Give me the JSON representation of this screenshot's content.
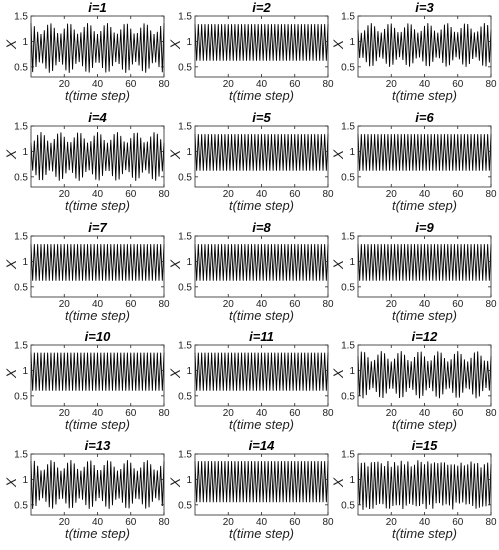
{
  "chart_data": [
    {
      "type": "line",
      "title": "i=1",
      "xlabel": "t(time step)",
      "ylabel": "X",
      "xlim": [
        0,
        80
      ],
      "ylim": [
        0.3,
        1.5
      ],
      "xticks": [
        20,
        40,
        60,
        80
      ],
      "yticks": [
        0.5,
        1,
        1.5
      ],
      "series": [
        {
          "range": [
            0.38,
            1.36
          ],
          "pattern": "period-2 alternation, amplitude modulated"
        }
      ]
    },
    {
      "type": "line",
      "title": "i=2",
      "xlabel": "t(time step)",
      "ylabel": "X",
      "xlim": [
        0,
        80
      ],
      "ylim": [
        0.3,
        1.5
      ],
      "xticks": [
        20,
        40,
        60,
        80
      ],
      "yticks": [
        0.5,
        1,
        1.5
      ],
      "series": [
        {
          "range": [
            0.62,
            1.34
          ],
          "pattern": "period-2 alternation"
        }
      ]
    },
    {
      "type": "line",
      "title": "i=3",
      "xlabel": "t(time step)",
      "ylabel": "X",
      "xlim": [
        0,
        80
      ],
      "ylim": [
        0.3,
        1.5
      ],
      "xticks": [
        20,
        40,
        60,
        80
      ],
      "yticks": [
        0.5,
        1,
        1.5
      ],
      "series": [
        {
          "range": [
            0.5,
            1.36
          ],
          "pattern": "period-2 alternation, amplitude modulated"
        }
      ]
    },
    {
      "type": "line",
      "title": "i=4",
      "xlabel": "t(time step)",
      "ylabel": "X",
      "xlim": [
        0,
        80
      ],
      "ylim": [
        0.3,
        1.5
      ],
      "xticks": [
        20,
        40,
        60,
        80
      ],
      "yticks": [
        0.5,
        1,
        1.5
      ],
      "series": [
        {
          "range": [
            0.42,
            1.38
          ],
          "pattern": "period-2 alternation, amplitude modulated"
        }
      ]
    },
    {
      "type": "line",
      "title": "i=5",
      "xlabel": "t(time step)",
      "ylabel": "X",
      "xlim": [
        0,
        80
      ],
      "ylim": [
        0.3,
        1.5
      ],
      "xticks": [
        20,
        40,
        60,
        80
      ],
      "yticks": [
        0.5,
        1,
        1.5
      ],
      "series": [
        {
          "range": [
            0.62,
            1.34
          ],
          "pattern": "period-2 alternation"
        }
      ]
    },
    {
      "type": "line",
      "title": "i=6",
      "xlabel": "t(time step)",
      "ylabel": "X",
      "xlim": [
        0,
        80
      ],
      "ylim": [
        0.3,
        1.5
      ],
      "xticks": [
        20,
        40,
        60,
        80
      ],
      "yticks": [
        0.5,
        1,
        1.5
      ],
      "series": [
        {
          "range": [
            0.62,
            1.34
          ],
          "pattern": "period-2 alternation"
        }
      ]
    },
    {
      "type": "line",
      "title": "i=7",
      "xlabel": "t(time step)",
      "ylabel": "X",
      "xlim": [
        0,
        80
      ],
      "ylim": [
        0.3,
        1.5
      ],
      "xticks": [
        20,
        40,
        60,
        80
      ],
      "yticks": [
        0.5,
        1,
        1.5
      ],
      "series": [
        {
          "range": [
            0.62,
            1.34
          ],
          "pattern": "period-2 alternation"
        }
      ]
    },
    {
      "type": "line",
      "title": "i=8",
      "xlabel": "t(time step)",
      "ylabel": "X",
      "xlim": [
        0,
        80
      ],
      "ylim": [
        0.3,
        1.5
      ],
      "xticks": [
        20,
        40,
        60,
        80
      ],
      "yticks": [
        0.5,
        1,
        1.5
      ],
      "series": [
        {
          "range": [
            0.62,
            1.34
          ],
          "pattern": "period-2 alternation"
        }
      ]
    },
    {
      "type": "line",
      "title": "i=9",
      "xlabel": "t(time step)",
      "ylabel": "X",
      "xlim": [
        0,
        80
      ],
      "ylim": [
        0.3,
        1.5
      ],
      "xticks": [
        20,
        40,
        60,
        80
      ],
      "yticks": [
        0.5,
        1,
        1.5
      ],
      "series": [
        {
          "range": [
            0.62,
            1.34
          ],
          "pattern": "period-2 alternation"
        }
      ]
    },
    {
      "type": "line",
      "title": "i=10",
      "xlabel": "t(time step)",
      "ylabel": "X",
      "xlim": [
        0,
        80
      ],
      "ylim": [
        0.3,
        1.5
      ],
      "xticks": [
        20,
        40,
        60,
        80
      ],
      "yticks": [
        0.5,
        1,
        1.5
      ],
      "series": [
        {
          "range": [
            0.6,
            1.35
          ],
          "pattern": "period-2 alternation"
        }
      ]
    },
    {
      "type": "line",
      "title": "i=11",
      "xlabel": "t(time step)",
      "ylabel": "X",
      "xlim": [
        0,
        80
      ],
      "ylim": [
        0.3,
        1.5
      ],
      "xticks": [
        20,
        40,
        60,
        80
      ],
      "yticks": [
        0.5,
        1,
        1.5
      ],
      "series": [
        {
          "range": [
            0.6,
            1.35
          ],
          "pattern": "period-2 alternation"
        }
      ]
    },
    {
      "type": "line",
      "title": "i=12",
      "xlabel": "t(time step)",
      "ylabel": "X",
      "xlim": [
        0,
        80
      ],
      "ylim": [
        0.3,
        1.5
      ],
      "xticks": [
        20,
        40,
        60,
        80
      ],
      "yticks": [
        0.5,
        1,
        1.5
      ],
      "series": [
        {
          "range": [
            0.45,
            1.38
          ],
          "pattern": "period-2 alternation, amplitude modulated"
        }
      ]
    },
    {
      "type": "line",
      "title": "i=13",
      "xlabel": "t(time step)",
      "ylabel": "X",
      "xlim": [
        0,
        80
      ],
      "ylim": [
        0.3,
        1.5
      ],
      "xticks": [
        20,
        40,
        60,
        80
      ],
      "yticks": [
        0.5,
        1,
        1.5
      ],
      "series": [
        {
          "range": [
            0.42,
            1.38
          ],
          "pattern": "period-2 alternation, amplitude modulated"
        }
      ]
    },
    {
      "type": "line",
      "title": "i=14",
      "xlabel": "t(time step)",
      "ylabel": "X",
      "xlim": [
        0,
        80
      ],
      "ylim": [
        0.3,
        1.5
      ],
      "xticks": [
        20,
        40,
        60,
        80
      ],
      "yticks": [
        0.5,
        1,
        1.5
      ],
      "series": [
        {
          "range": [
            0.55,
            1.36
          ],
          "pattern": "period-2 alternation"
        }
      ]
    },
    {
      "type": "line",
      "title": "i=15",
      "xlabel": "t(time step)",
      "ylabel": "X",
      "xlim": [
        0,
        80
      ],
      "ylim": [
        0.3,
        1.5
      ],
      "xticks": [
        20,
        40,
        60,
        80
      ],
      "yticks": [
        0.5,
        1,
        1.5
      ],
      "series": [
        {
          "range": [
            0.4,
            1.38
          ],
          "pattern": "period-2 alternation, irregular modulation"
        }
      ]
    }
  ],
  "colors": {
    "line": "#000000",
    "axis": "#262626",
    "background": "#ffffff"
  }
}
